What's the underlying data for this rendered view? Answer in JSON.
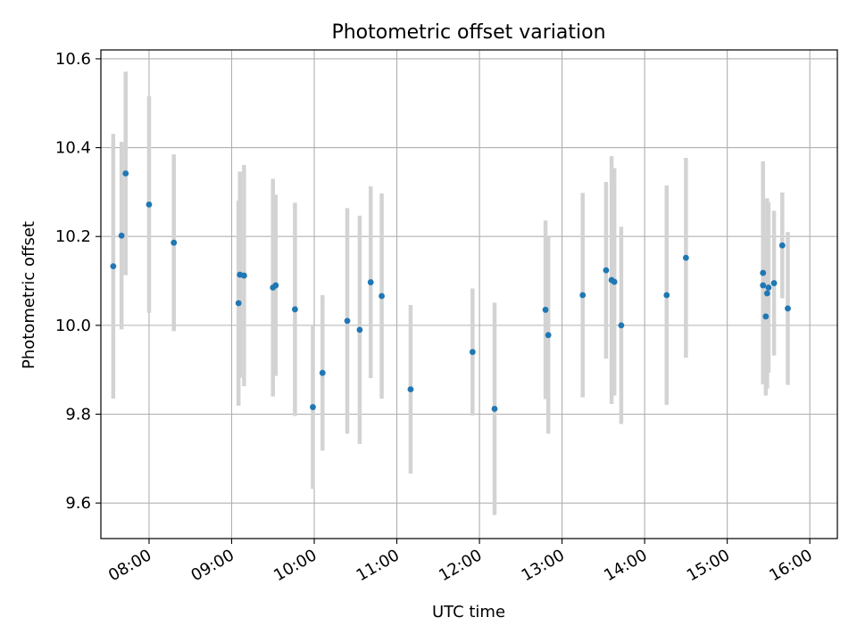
{
  "chart_data": {
    "type": "scatter",
    "title": "Photometric offset variation",
    "xlabel": "UTC time",
    "ylabel": "Photometric offset",
    "xlim": [
      "07:25",
      "16:20"
    ],
    "ylim": [
      9.52,
      10.62
    ],
    "x_ticks": [
      "08:00",
      "09:00",
      "10:00",
      "11:00",
      "12:00",
      "13:00",
      "14:00",
      "15:00",
      "16:00"
    ],
    "y_ticks": [
      9.6,
      9.8,
      10.0,
      10.2,
      10.4,
      10.6
    ],
    "grid": true,
    "colors": {
      "points": "#1f77b4",
      "error_bars": "#d3d3d3",
      "grid": "#b0b0b0"
    },
    "series": [
      {
        "points": [
          {
            "x": "07:34",
            "y": 10.133,
            "y_low": 9.835,
            "y_high": 10.431
          },
          {
            "x": "07:40",
            "y": 10.202,
            "y_low": 9.991,
            "y_high": 10.413
          },
          {
            "x": "07:43",
            "y": 10.342,
            "y_low": 10.113,
            "y_high": 10.571
          },
          {
            "x": "08:00",
            "y": 10.272,
            "y_low": 10.028,
            "y_high": 10.516
          },
          {
            "x": "08:18",
            "y": 10.186,
            "y_low": 9.987,
            "y_high": 10.385
          },
          {
            "x": "09:05",
            "y": 10.05,
            "y_low": 9.819,
            "y_high": 10.281
          },
          {
            "x": "09:06",
            "y": 10.114,
            "y_low": 9.882,
            "y_high": 10.346
          },
          {
            "x": "09:09",
            "y": 10.112,
            "y_low": 9.863,
            "y_high": 10.361
          },
          {
            "x": "09:30",
            "y": 10.085,
            "y_low": 9.84,
            "y_high": 10.33
          },
          {
            "x": "09:32",
            "y": 10.09,
            "y_low": 9.886,
            "y_high": 10.294
          },
          {
            "x": "09:46",
            "y": 10.036,
            "y_low": 9.796,
            "y_high": 10.276
          },
          {
            "x": "09:59",
            "y": 9.816,
            "y_low": 9.632,
            "y_high": 10.0
          },
          {
            "x": "10:06",
            "y": 9.893,
            "y_low": 9.718,
            "y_high": 10.068
          },
          {
            "x": "10:24",
            "y": 10.01,
            "y_low": 9.756,
            "y_high": 10.264
          },
          {
            "x": "10:33",
            "y": 9.99,
            "y_low": 9.733,
            "y_high": 10.247
          },
          {
            "x": "10:41",
            "y": 10.097,
            "y_low": 9.881,
            "y_high": 10.313
          },
          {
            "x": "10:49",
            "y": 10.066,
            "y_low": 9.835,
            "y_high": 10.297
          },
          {
            "x": "11:10",
            "y": 9.856,
            "y_low": 9.666,
            "y_high": 10.046
          },
          {
            "x": "11:55",
            "y": 9.94,
            "y_low": 9.797,
            "y_high": 10.083
          },
          {
            "x": "12:11",
            "y": 9.812,
            "y_low": 9.573,
            "y_high": 10.051
          },
          {
            "x": "12:48",
            "y": 10.035,
            "y_low": 9.834,
            "y_high": 10.236
          },
          {
            "x": "12:50",
            "y": 9.978,
            "y_low": 9.756,
            "y_high": 10.2
          },
          {
            "x": "13:15",
            "y": 10.068,
            "y_low": 9.838,
            "y_high": 10.298
          },
          {
            "x": "13:32",
            "y": 10.124,
            "y_low": 9.925,
            "y_high": 10.323
          },
          {
            "x": "13:36",
            "y": 10.102,
            "y_low": 9.823,
            "y_high": 10.381
          },
          {
            "x": "13:38",
            "y": 10.098,
            "y_low": 9.842,
            "y_high": 10.354
          },
          {
            "x": "13:43",
            "y": 10.0,
            "y_low": 9.778,
            "y_high": 10.222
          },
          {
            "x": "14:16",
            "y": 10.068,
            "y_low": 9.821,
            "y_high": 10.315
          },
          {
            "x": "14:30",
            "y": 10.152,
            "y_low": 9.927,
            "y_high": 10.377
          },
          {
            "x": "15:26",
            "y": 10.118,
            "y_low": 9.867,
            "y_high": 10.369
          },
          {
            "x": "15:26",
            "y": 10.09,
            "y_low": 9.901,
            "y_high": 10.279
          },
          {
            "x": "15:28",
            "y": 10.02,
            "y_low": 9.842,
            "y_high": 10.198
          },
          {
            "x": "15:29",
            "y": 10.072,
            "y_low": 9.858,
            "y_high": 10.286
          },
          {
            "x": "15:30",
            "y": 10.085,
            "y_low": 9.893,
            "y_high": 10.277
          },
          {
            "x": "15:34",
            "y": 10.095,
            "y_low": 9.932,
            "y_high": 10.258
          },
          {
            "x": "15:40",
            "y": 10.18,
            "y_low": 10.061,
            "y_high": 10.299
          },
          {
            "x": "15:44",
            "y": 10.038,
            "y_low": 9.866,
            "y_high": 10.21
          }
        ]
      }
    ]
  }
}
